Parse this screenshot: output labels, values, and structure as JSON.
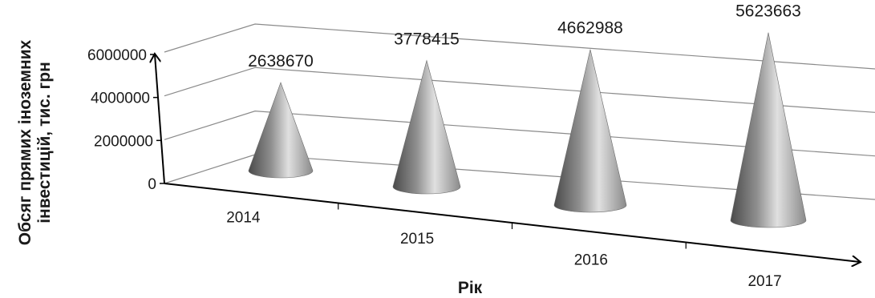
{
  "chart_data": {
    "type": "bar",
    "shape": "cone",
    "three_d": true,
    "categories": [
      "2014",
      "2015",
      "2016",
      "2017"
    ],
    "series": [
      {
        "values": [
          2638670,
          3778415,
          4662988,
          5623663
        ]
      }
    ],
    "data_labels": [
      "2638670",
      "3778415",
      "4662988",
      "5623663"
    ],
    "y_ticks": [
      "0",
      "2000000",
      "4000000",
      "6000000"
    ],
    "ylim": [
      0,
      6000000
    ],
    "xlabel": "Рік",
    "ylabel_lines": [
      "Обсяг прямих іноземних",
      "інвестицій, тис. грн"
    ],
    "grid": true,
    "legend": "none",
    "colors": {
      "cone_dark": "#3d3d3d",
      "cone_mid": "#8c8c8c",
      "cone_light": "#e2e2e2",
      "grid": "#8a8a8a",
      "axis": "#000000"
    }
  }
}
